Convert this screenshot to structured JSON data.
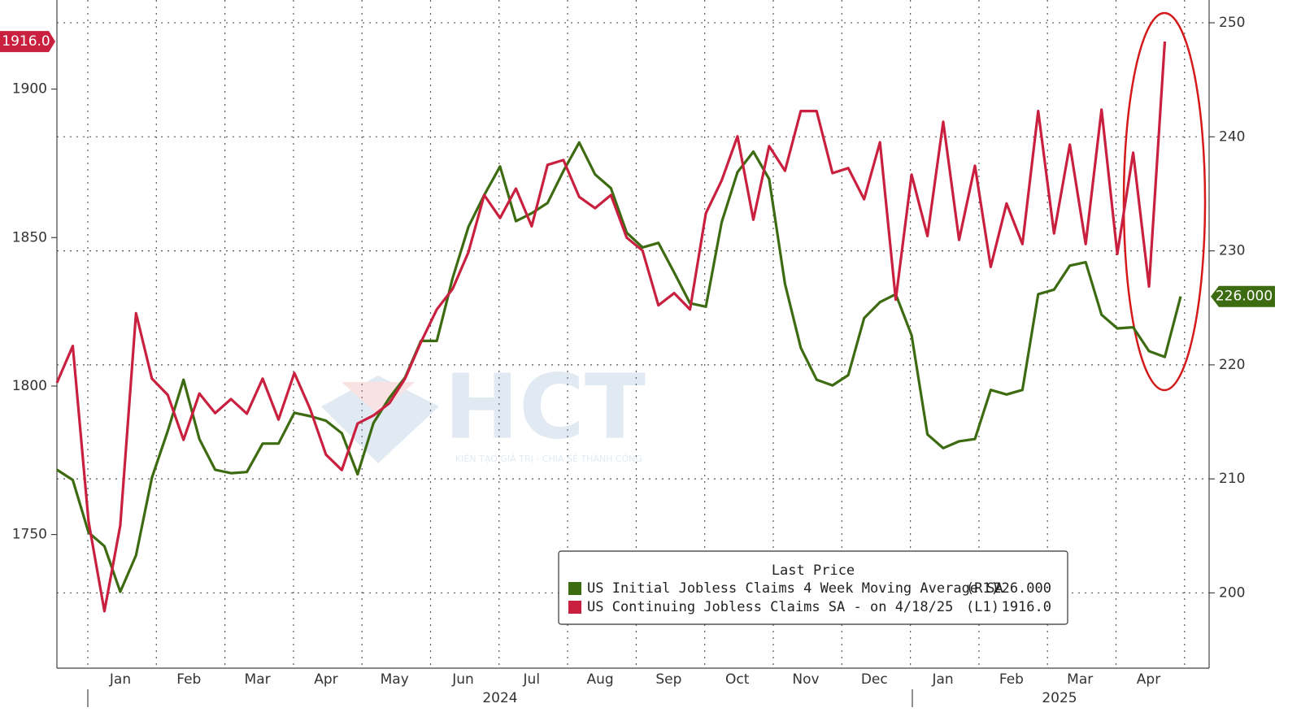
{
  "chart_data": {
    "type": "line",
    "months": [
      "Jan",
      "Feb",
      "Mar",
      "Apr",
      "May",
      "Jun",
      "Jul",
      "Aug",
      "Sep",
      "Oct",
      "Nov",
      "Dec",
      "Jan",
      "Feb",
      "Mar",
      "Apr"
    ],
    "years": [
      "2024",
      "2025"
    ],
    "ylim": [
      1705,
      1930
    ],
    "yticks": [
      1750,
      1800,
      1850,
      1900
    ],
    "y2lim": [
      193.4,
      252
    ],
    "y2ticks": [
      200,
      210,
      220,
      230,
      240,
      250
    ],
    "grid": true,
    "legend_title": "Last Price",
    "watermark": "HCT",
    "watermark_sub": "KIẾN TẠO GIÁ TRỊ - CHIA SẺ THÀNH CÔNG",
    "series": [
      {
        "name": "US Initial Jobless Claims 4 Week Moving Average SA",
        "axis_label": "(R1)",
        "last_price": "226.000",
        "color": "#3d6b12",
        "axis": "y2",
        "values": [
          210.8,
          209.9,
          205.3,
          204.1,
          200.1,
          203.3,
          210.1,
          214.2,
          218.7,
          213.5,
          210.8,
          210.5,
          210.6,
          213.1,
          213.1,
          215.8,
          215.5,
          215.1,
          214.0,
          210.4,
          214.9,
          217.1,
          218.9,
          222.1,
          222.1,
          227.6,
          232.1,
          234.9,
          237.4,
          232.6,
          233.3,
          234.2,
          237.0,
          239.5,
          236.7,
          235.5,
          231.6,
          230.3,
          230.7,
          228.1,
          225.4,
          225.1,
          232.5,
          236.9,
          238.7,
          236.3,
          227.1,
          221.5,
          218.7,
          218.2,
          219.1,
          224.1,
          225.5,
          226.2,
          222.6,
          213.9,
          212.7,
          213.3,
          213.5,
          217.8,
          217.4,
          217.8,
          226.2,
          226.6,
          228.7,
          229.0,
          224.4,
          223.2,
          223.3,
          221.2,
          220.7,
          226
        ]
      },
      {
        "name": "US Continuing Jobless Claims SA -  on 4/18/25",
        "axis_label": "(L1)",
        "last_price": "1916.0",
        "color": "#c8203e",
        "axis": "y",
        "values": [
          1801.1,
          1813.5,
          1754.4,
          1724.2,
          1753.0,
          1824.5,
          1802.5,
          1797.0,
          1781.9,
          1797.5,
          1790.9,
          1795.6,
          1790.7,
          1802.5,
          1788.7,
          1804.4,
          1792.3,
          1776.9,
          1771.7,
          1787.4,
          1790.1,
          1794.2,
          1802.5,
          1814.8,
          1825.8,
          1832.7,
          1845.1,
          1864.3,
          1856.6,
          1866.5,
          1853.8,
          1874.5,
          1876.1,
          1863.7,
          1859.9,
          1864.3,
          1850.0,
          1845.6,
          1827.2,
          1831.3,
          1825.8,
          1858.2,
          1869.2,
          1884.1,
          1856.0,
          1880.8,
          1872.5,
          1892.6,
          1892.6,
          1871.7,
          1873.4,
          1862.9,
          1882.1,
          1829.1,
          1871.2,
          1850.5,
          1889.0,
          1849.2,
          1874.2,
          1840.1,
          1861.5,
          1847.8,
          1892.6,
          1851.4,
          1881.3,
          1847.8,
          1893.1,
          1844.5,
          1878.6,
          1833.5,
          1916.0,
          null
        ]
      }
    ]
  }
}
